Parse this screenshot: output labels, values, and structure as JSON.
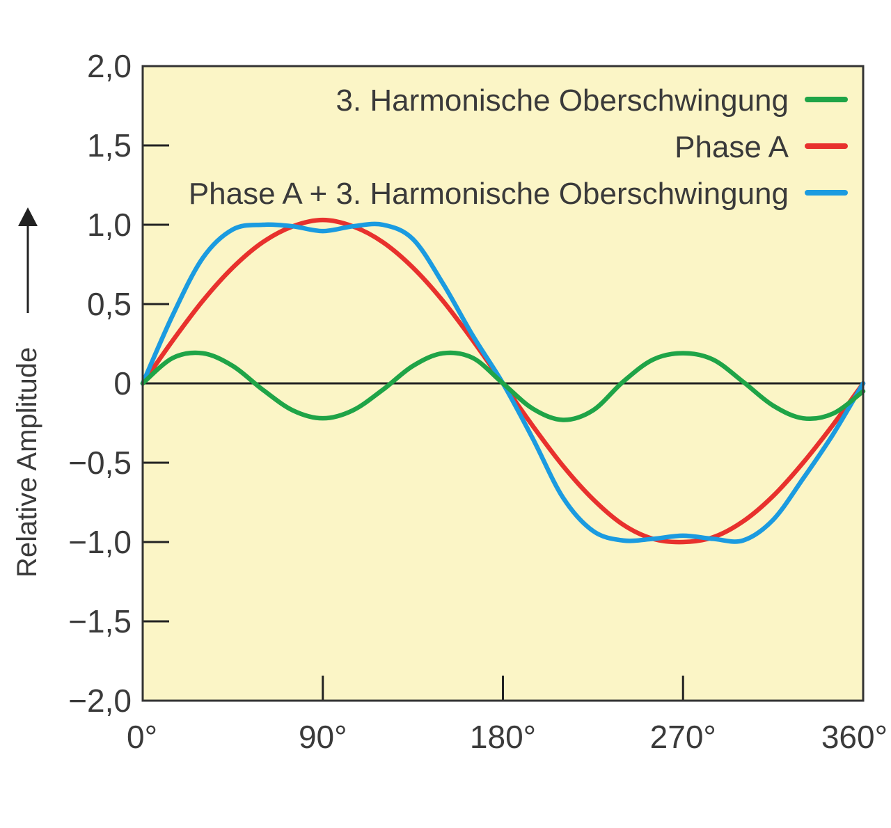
{
  "chart_data": {
    "type": "line",
    "ylabel": "Relative Amplitude",
    "x_ticks": [
      "0°",
      "90°",
      "180°",
      "270°",
      "360°"
    ],
    "y_ticks": [
      "2,0",
      "1,5",
      "1,0",
      "0,5",
      "0",
      "−0,5",
      "−1,0",
      "−1,5",
      "−2,0"
    ],
    "xlim": [
      0,
      360
    ],
    "ylim": [
      -2,
      2
    ],
    "grid": false,
    "zero_line": true,
    "legend_position": "top-right",
    "plot_background": "#fbf5c6",
    "series": [
      {
        "name": "3. Harmonische Oberschwingung",
        "color": "#1fa447",
        "x": [
          0,
          15,
          30,
          45,
          60,
          75,
          90,
          105,
          120,
          135,
          150,
          165,
          180,
          195,
          210,
          225,
          240,
          255,
          270,
          285,
          300,
          315,
          330,
          345,
          360
        ],
        "y": [
          0,
          0.16,
          0.19,
          0.11,
          -0.04,
          -0.17,
          -0.22,
          -0.17,
          -0.04,
          0.11,
          0.19,
          0.16,
          0,
          -0.16,
          -0.23,
          -0.17,
          0.01,
          0.15,
          0.19,
          0.15,
          0.01,
          -0.14,
          -0.22,
          -0.19,
          -0.05
        ]
      },
      {
        "name": "Phase A",
        "color": "#e8312d",
        "x": [
          0,
          15,
          30,
          45,
          60,
          75,
          90,
          105,
          120,
          135,
          150,
          165,
          180,
          195,
          210,
          225,
          240,
          255,
          270,
          285,
          300,
          315,
          330,
          345,
          360
        ],
        "y": [
          0,
          0.27,
          0.52,
          0.73,
          0.89,
          0.99,
          1.03,
          0.99,
          0.89,
          0.73,
          0.52,
          0.27,
          0,
          -0.27,
          -0.52,
          -0.73,
          -0.89,
          -0.98,
          -1.0,
          -0.97,
          -0.87,
          -0.71,
          -0.5,
          -0.26,
          0
        ]
      },
      {
        "name": "Phase A + 3. Harmonische Oberschwingung",
        "color": "#1b9be0",
        "x": [
          0,
          15,
          30,
          45,
          60,
          75,
          90,
          105,
          120,
          135,
          150,
          165,
          180,
          195,
          210,
          225,
          240,
          255,
          270,
          285,
          300,
          315,
          330,
          345,
          360
        ],
        "y": [
          0,
          0.43,
          0.79,
          0.97,
          1.0,
          0.99,
          0.96,
          0.99,
          1.0,
          0.91,
          0.63,
          0.3,
          0,
          -0.35,
          -0.72,
          -0.93,
          -0.99,
          -0.98,
          -0.96,
          -0.98,
          -0.99,
          -0.86,
          -0.6,
          -0.32,
          0
        ]
      }
    ]
  }
}
